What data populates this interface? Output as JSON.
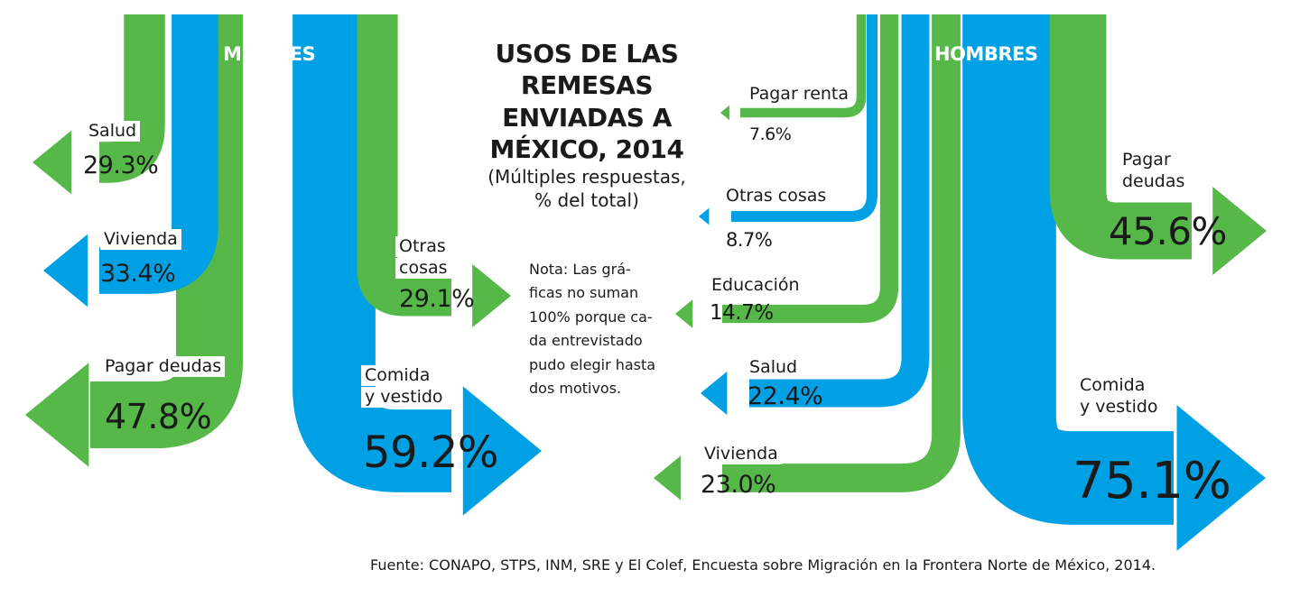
{
  "colors": {
    "green": "#55b848",
    "blue": "#00a1e4"
  },
  "title_lines": [
    "USOS DE LAS",
    "REMESAS",
    "ENVIADAS A",
    "MÉXICO, 2014"
  ],
  "subtitle_lines": [
    "(Múltiples respuestas,",
    "% del total)"
  ],
  "note_lines": [
    "Nota: Las grá-",
    "ficas no suman",
    "100% porque ca-",
    "da entrevistado",
    "pudo elegir hasta",
    "dos motivos."
  ],
  "source": "Fuente: CONAPO, STPS, INM, SRE y El Colef, Encuesta sobre Migración en la Frontera Norte de México, 2014.",
  "chart_data": {
    "type": "flow",
    "title": "USOS DE LAS REMESAS ENVIADAS A MÉXICO, 2014",
    "subtitle": "(Múltiples respuestas, % del total)",
    "unit": "% del total",
    "groups": [
      {
        "name": "MUJERES",
        "items": [
          {
            "label": "Salud",
            "value": 29.3,
            "value_label": "29.3%",
            "color": "green",
            "direction": "left"
          },
          {
            "label": "Vivienda",
            "value": 33.4,
            "value_label": "33.4%",
            "color": "blue",
            "direction": "left"
          },
          {
            "label": "Pagar deudas",
            "value": 47.8,
            "value_label": "47.8%",
            "color": "green",
            "direction": "left"
          },
          {
            "label_lines": [
              "Otras",
              "cosas"
            ],
            "value": 29.1,
            "value_label": "29.1%",
            "color": "green",
            "direction": "right"
          },
          {
            "label_lines": [
              "Comida",
              "y vestido"
            ],
            "value": 59.2,
            "value_label": "59.2%",
            "color": "blue",
            "direction": "right"
          }
        ]
      },
      {
        "name": "HOMBRES",
        "items": [
          {
            "label": "Pagar renta",
            "value": 7.6,
            "value_label": "7.6%",
            "color": "green",
            "direction": "left"
          },
          {
            "label": "Otras cosas",
            "value": 8.7,
            "value_label": "8.7%",
            "color": "blue",
            "direction": "left"
          },
          {
            "label": "Educación",
            "value": 14.7,
            "value_label": "14.7%",
            "color": "green",
            "direction": "left"
          },
          {
            "label": "Salud",
            "value": 22.4,
            "value_label": "22.4%",
            "color": "blue",
            "direction": "left"
          },
          {
            "label": "Vivienda",
            "value": 23.0,
            "value_label": "23.0%",
            "color": "green",
            "direction": "left"
          },
          {
            "label_lines": [
              "Pagar",
              "deudas"
            ],
            "value": 45.6,
            "value_label": "45.6%",
            "color": "green",
            "direction": "right"
          },
          {
            "label_lines": [
              "Comida",
              "y vestido"
            ],
            "value": 75.1,
            "value_label": "75.1%",
            "color": "blue",
            "direction": "right"
          }
        ]
      }
    ]
  }
}
